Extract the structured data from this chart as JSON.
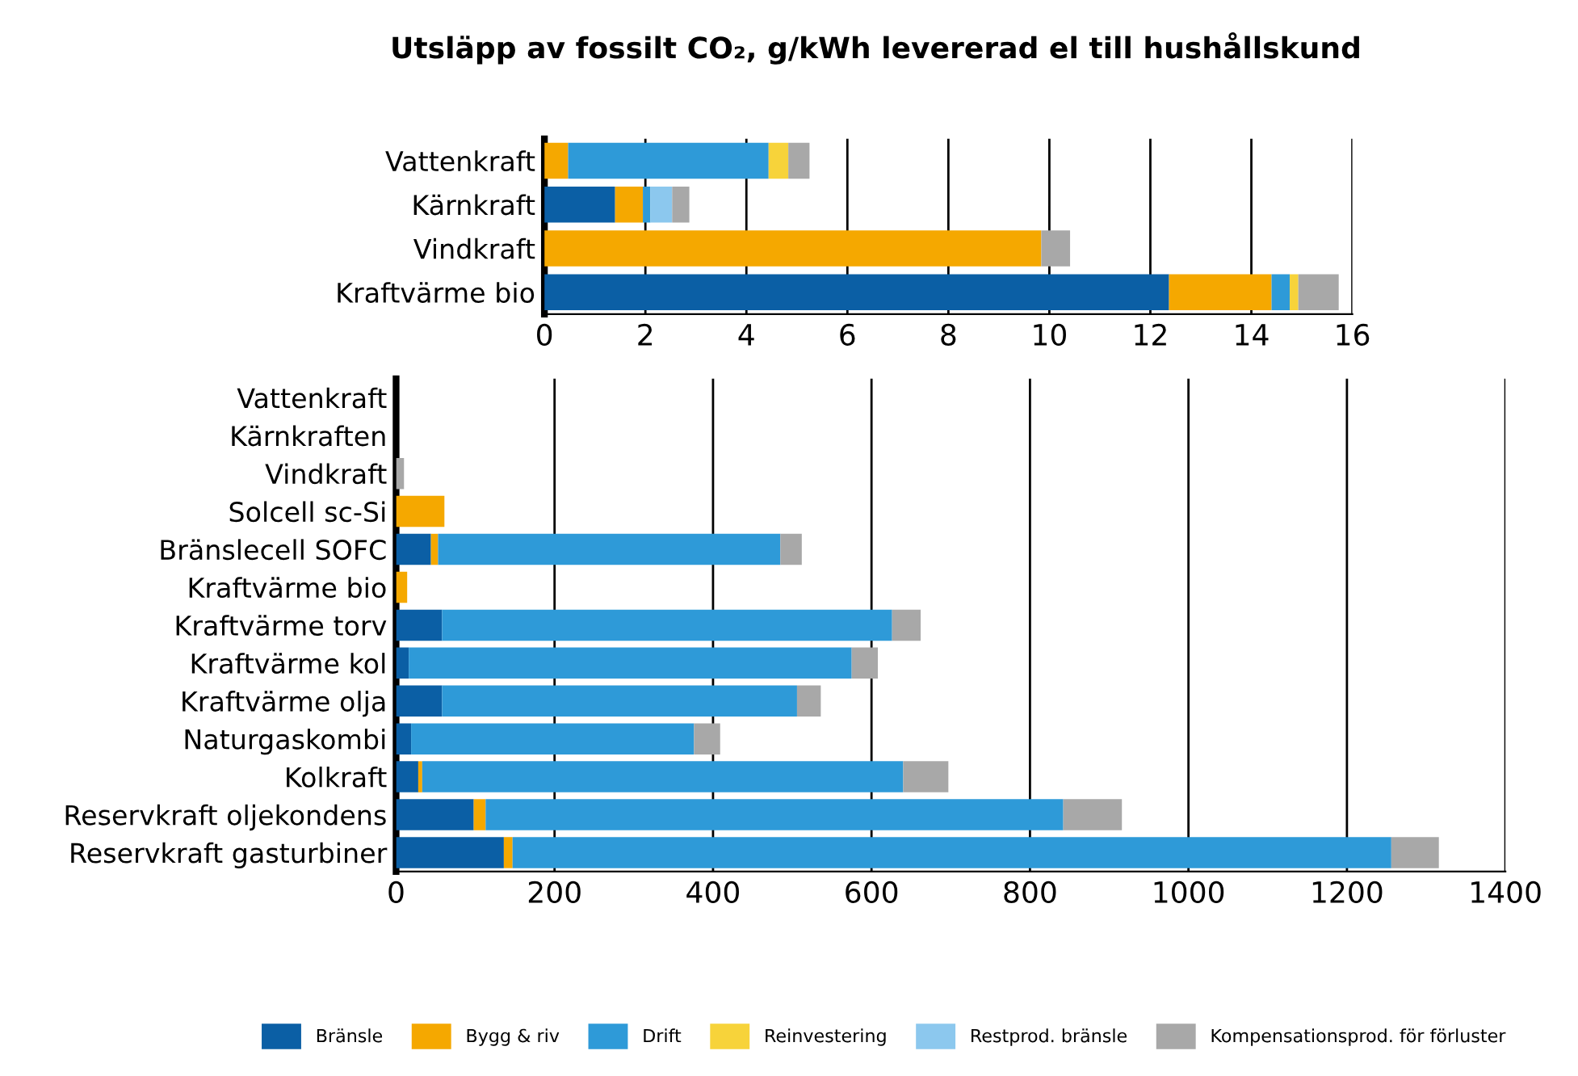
{
  "chart_data": [
    {
      "type": "bar",
      "title": "Utsläpp av fossilt CO₂, g/kWh levererad el till hushållskund",
      "orientation": "horizontal",
      "stacked": true,
      "categories": [
        "Vattenkraft",
        "Kärnkraft",
        "Vindkraft",
        "Kraftvärme bio"
      ],
      "series": [
        {
          "name": "Bränsle",
          "color": "#0b5fa5",
          "values": [
            0,
            1.4,
            0,
            12.37
          ]
        },
        {
          "name": "Bygg & riv",
          "color": "#f5a800",
          "values": [
            0.47,
            0.55,
            9.84,
            2.03
          ]
        },
        {
          "name": "Drift",
          "color": "#2e9ad8",
          "values": [
            3.97,
            0.15,
            0,
            0.36
          ]
        },
        {
          "name": "Reinvestering",
          "color": "#f7d33a",
          "values": [
            0.39,
            0,
            0,
            0.17
          ]
        },
        {
          "name": "Restprod. bränsle",
          "color": "#8cc8ee",
          "values": [
            0,
            0.43,
            0,
            0
          ]
        },
        {
          "name": "Kompensationsprod. för förluster",
          "color": "#a8a8a8",
          "values": [
            0.42,
            0.34,
            0.57,
            0.8
          ]
        }
      ],
      "xlim": [
        0,
        16
      ],
      "xticks": [
        0,
        2,
        4,
        6,
        8,
        10,
        12,
        14,
        16
      ],
      "grid": "x",
      "legend": "bottom"
    },
    {
      "type": "bar",
      "orientation": "horizontal",
      "stacked": true,
      "categories": [
        "Vattenkraft",
        "Kärnkraften",
        "Vindkraft",
        "Solcell sc-Si",
        "Bränslecell SOFC",
        "Kraftvärme bio",
        "Kraftvärme torv",
        "Kraftvärme kol",
        "Kraftvärme olja",
        "Naturgaskombi",
        "Kolkraft",
        "Reservkraft oljekondens",
        "Reservkraft gasturbiner"
      ],
      "series": [
        {
          "color": "#0b5fa5",
          "values": [
            null,
            null,
            null,
            null,
            44,
            null,
            58,
            16,
            58,
            19,
            28,
            98,
            136
          ]
        },
        {
          "color": "#f5a800",
          "values": [
            null,
            null,
            null,
            61,
            9,
            14,
            null,
            null,
            null,
            null,
            5,
            15,
            11
          ]
        },
        {
          "color": "#2e9ad8",
          "values": [
            null,
            null,
            null,
            null,
            432,
            null,
            568,
            559,
            448,
            357,
            607,
            729,
            1109
          ]
        },
        {
          "color": "#a8a8a8",
          "values": [
            null,
            null,
            10,
            null,
            27,
            null,
            36,
            33,
            30,
            33,
            57,
            74,
            60
          ]
        }
      ],
      "xlim": [
        0,
        1400
      ],
      "xticks": [
        0,
        200,
        400,
        600,
        800,
        1000,
        1200,
        1400
      ],
      "grid": "x"
    }
  ]
}
